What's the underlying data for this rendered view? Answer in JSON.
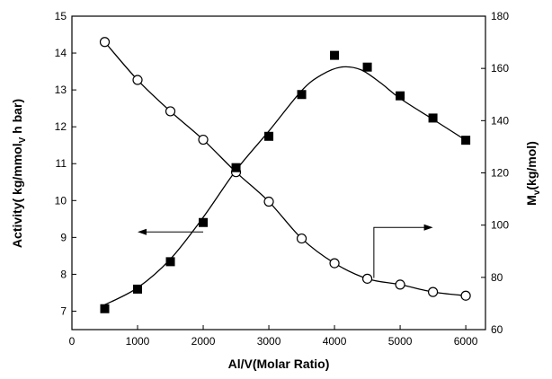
{
  "chart_data": {
    "type": "line",
    "title": "",
    "xlabel": "Al/V(Molar Ratio)",
    "ylabel_left_main": "Activity( kg/mmol",
    "ylabel_left_sub": "V",
    "ylabel_left_tail": " h bar)",
    "ylabel_right_main": "M",
    "ylabel_right_sub": "v",
    "ylabel_right_tail": "(kg/mol)",
    "xlim": [
      0,
      6300
    ],
    "ylim_left": [
      6.5,
      15
    ],
    "ylim_right": [
      60,
      180
    ],
    "x_ticks": [
      0,
      1000,
      2000,
      3000,
      4000,
      5000,
      6000
    ],
    "y_left_ticks": [
      7,
      8,
      9,
      10,
      11,
      12,
      13,
      14,
      15
    ],
    "y_right_ticks": [
      60,
      80,
      100,
      120,
      140,
      160,
      180
    ],
    "grid": false,
    "series": [
      {
        "axis": "left",
        "marker": "open-circle",
        "x": [
          500,
          1000,
          1500,
          2000,
          2500,
          3000,
          3500,
          4000,
          4500,
          5000,
          5500,
          6000
        ],
        "y": [
          14.3,
          13.27,
          12.42,
          11.65,
          10.77,
          9.97,
          8.97,
          8.3,
          7.88,
          7.72,
          7.52,
          7.42
        ],
        "curve_x": [
          500,
          1000,
          1500,
          2000,
          2500,
          3000,
          3500,
          4000,
          4500,
          5000,
          5500,
          6000
        ],
        "curve_y": [
          14.3,
          13.27,
          12.42,
          11.65,
          10.77,
          9.97,
          8.97,
          8.3,
          7.88,
          7.72,
          7.52,
          7.42
        ]
      },
      {
        "axis": "right",
        "marker": "filled-square",
        "x": [
          500,
          1000,
          1500,
          2000,
          2500,
          3000,
          3500,
          4000,
          4500,
          5000,
          5500,
          6000
        ],
        "y": [
          68,
          75.5,
          86,
          101,
          122,
          134,
          150,
          165,
          160.5,
          149.5,
          141,
          132.5
        ],
        "curve_x": [
          500,
          1000,
          1500,
          2000,
          2500,
          3000,
          3500,
          3800,
          4100,
          4400,
          4700,
          5000,
          5500,
          6000
        ],
        "curve_y": [
          69.5,
          76,
          87,
          103,
          121,
          136,
          151.5,
          157.5,
          160.5,
          159.5,
          154.5,
          148.5,
          140.5,
          132.5
        ]
      }
    ],
    "annotations": [
      {
        "type": "arrow",
        "points_to": "left",
        "from": [
          2000,
          9.15
        ],
        "to": [
          1000,
          9.15
        ]
      },
      {
        "type": "arrow",
        "points_to": "right",
        "from": [
          4600,
          7.9
        ],
        "corner": [
          4600,
          9.27
        ],
        "to": [
          5500,
          9.27
        ]
      }
    ],
    "colors": {
      "line": "#000000",
      "marker_fill_square": "#000000",
      "marker_fill_circle": "#ffffff"
    }
  }
}
